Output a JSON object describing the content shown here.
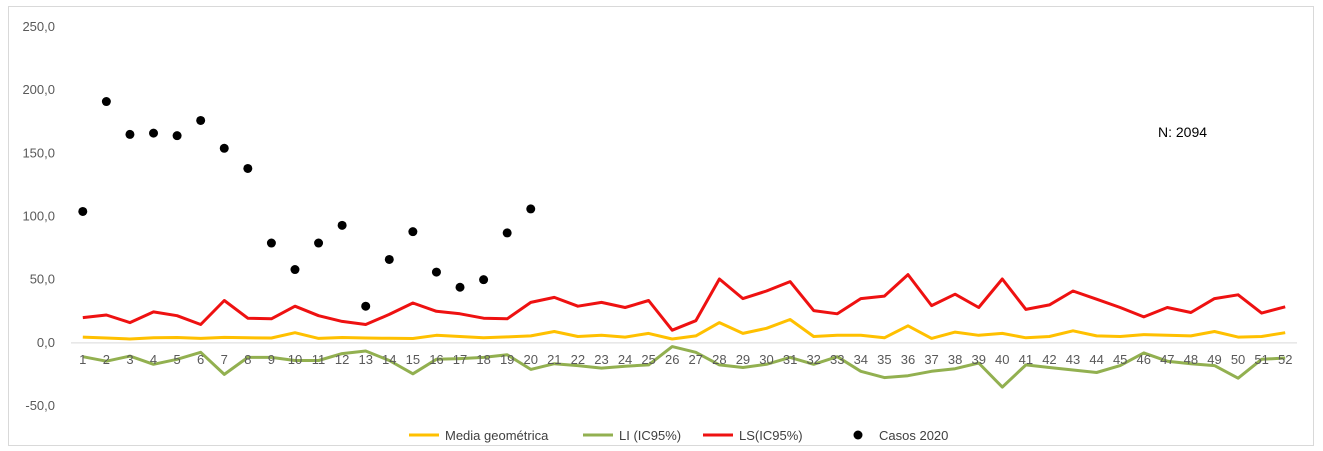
{
  "chart_data": {
    "type": "line",
    "x": [
      1,
      2,
      3,
      4,
      5,
      6,
      7,
      8,
      9,
      10,
      11,
      12,
      13,
      14,
      15,
      16,
      17,
      18,
      19,
      20,
      21,
      22,
      23,
      24,
      25,
      26,
      27,
      28,
      29,
      30,
      31,
      32,
      33,
      34,
      35,
      36,
      37,
      38,
      39,
      40,
      41,
      42,
      43,
      44,
      45,
      46,
      47,
      48,
      49,
      50,
      51,
      52
    ],
    "x_tick_labels": [
      "1",
      "2",
      "3",
      "4",
      "5",
      "6",
      "7",
      "8",
      "9",
      "10",
      "11",
      "12",
      "13",
      "14",
      "15",
      "16",
      "17",
      "18",
      "19",
      "20",
      "21",
      "22",
      "23",
      "24",
      "25",
      "26",
      "27",
      "28",
      "29",
      "30",
      "31",
      "32",
      "33",
      "34",
      "35",
      "36",
      "37",
      "38",
      "39",
      "40",
      "41",
      "42",
      "43",
      "44",
      "45",
      "46",
      "47",
      "48",
      "49",
      "50",
      "51",
      "52"
    ],
    "y_tick_labels": [
      "-50,0",
      "0,0",
      "50,0",
      "100,0",
      "150,0",
      "200,0",
      "250,0"
    ],
    "ylim": [
      -50,
      250
    ],
    "grid": false,
    "legend_position": "bottom",
    "annotation": "N: 2094",
    "series": [
      {
        "name": "Media geométrica",
        "kind": "line",
        "color": "#ffc000",
        "values": [
          4.5,
          3.8,
          3,
          4,
          4.2,
          3.5,
          4.3,
          4,
          3.8,
          8,
          3.5,
          4.2,
          3.8,
          3.6,
          3.4,
          6,
          5,
          4,
          4.7,
          5.5,
          9,
          5,
          6,
          4.5,
          7.5,
          3,
          5.5,
          16,
          7.5,
          11.5,
          18.5,
          5,
          6,
          6,
          4,
          13.5,
          3.5,
          8.5,
          6,
          7.5,
          4,
          5,
          9.5,
          5.5,
          5,
          6.5,
          6,
          5.5,
          9,
          4.5,
          5,
          8
        ]
      },
      {
        "name": "LI (IC95%)",
        "kind": "line",
        "color": "#92b050",
        "values": [
          -11,
          -14.5,
          -10.5,
          -17,
          -13,
          -7.5,
          -25,
          -11.5,
          -11.5,
          -14,
          -14,
          -8.5,
          -6.5,
          -14,
          -24.5,
          -13,
          -12.5,
          -11.5,
          -9.5,
          -21,
          -16.5,
          -18,
          -20,
          -18.5,
          -17.5,
          -3,
          -7.5,
          -17.5,
          -19.5,
          -17,
          -11.5,
          -17,
          -11,
          -22.5,
          -27.5,
          -26,
          -22.5,
          -20.5,
          -16,
          -35,
          -17.5,
          -19.5,
          -21.5,
          -23.5,
          -18,
          -8,
          -14.5,
          -16.5,
          -18,
          -28,
          -13,
          -12
        ]
      },
      {
        "name": "LS(IC95%)",
        "kind": "line",
        "color": "#ee1111",
        "values": [
          20,
          22,
          16,
          24.5,
          21.5,
          14.5,
          33.5,
          19.5,
          19,
          29,
          21.5,
          17,
          14.5,
          22.5,
          31.5,
          25,
          23,
          19.5,
          19,
          32,
          36,
          29,
          32,
          28,
          33.5,
          10,
          17.5,
          50.5,
          35,
          41,
          48.5,
          25.5,
          23,
          35,
          37,
          54,
          29.5,
          38.5,
          28,
          50.5,
          26.5,
          30,
          41,
          34.5,
          28,
          20.5,
          28,
          24,
          35,
          38,
          23.5,
          28.5
        ]
      },
      {
        "name": "Casos 2020",
        "kind": "scatter",
        "color": "#000000",
        "values": [
          104,
          191,
          165,
          166,
          164,
          176,
          154,
          138,
          79,
          58,
          79,
          93,
          29,
          66,
          88,
          56,
          44,
          50,
          87,
          106
        ]
      }
    ]
  }
}
